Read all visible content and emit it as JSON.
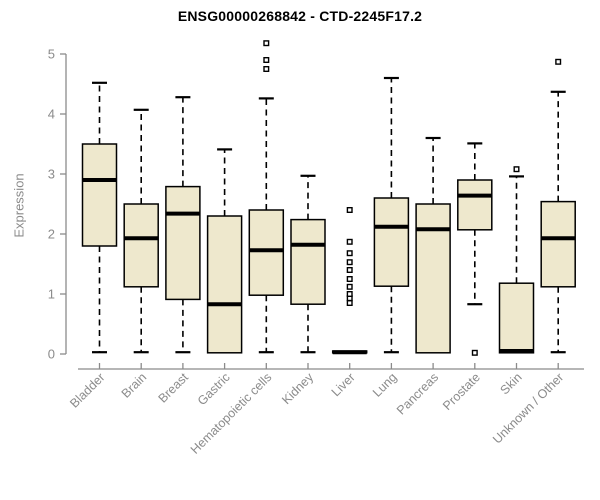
{
  "title": "ENSG00000268842 - CTD-2245F17.2",
  "colors": {
    "box_fill": "#EEE8CD",
    "box_stroke": "#000000",
    "median": "#000000",
    "whisker": "#000000",
    "outlier_fill": "#FFFFFF",
    "axis": "#8B8B8B",
    "tick_label": "#8B8B8B",
    "title": "#000000",
    "background": "#FFFFFF"
  },
  "chart_data": {
    "type": "boxplot",
    "title": "ENSG00000268842 - CTD-2245F17.2",
    "xlabel": "",
    "ylabel": "Expression",
    "ylim": [
      0,
      5
    ],
    "yticks": [
      0,
      1,
      2,
      3,
      4,
      5
    ],
    "grid": false,
    "legend": null,
    "categories": [
      "Bladder",
      "Brain",
      "Breast",
      "Gastric",
      "Hematopoietic cells",
      "Kidney",
      "Liver",
      "Lung",
      "Pancreas",
      "Prostate",
      "Skin",
      "Unknown / Other"
    ],
    "series": [
      {
        "name": "Bladder",
        "whisker_low": 0.03,
        "q1": 1.8,
        "median": 2.9,
        "q3": 3.5,
        "whisker_high": 4.52,
        "outliers": []
      },
      {
        "name": "Brain",
        "whisker_low": 0.03,
        "q1": 1.12,
        "median": 1.93,
        "q3": 2.5,
        "whisker_high": 4.07,
        "outliers": []
      },
      {
        "name": "Breast",
        "whisker_low": 0.03,
        "q1": 0.91,
        "median": 2.34,
        "q3": 2.79,
        "whisker_high": 4.28,
        "outliers": []
      },
      {
        "name": "Gastric",
        "whisker_low": 0.02,
        "q1": 0.02,
        "median": 0.83,
        "q3": 2.3,
        "whisker_high": 3.41,
        "outliers": []
      },
      {
        "name": "Hematopoietic cells",
        "whisker_low": 0.03,
        "q1": 0.98,
        "median": 1.73,
        "q3": 2.4,
        "whisker_high": 4.26,
        "outliers": [
          4.75,
          4.9,
          5.18
        ]
      },
      {
        "name": "Kidney",
        "whisker_low": 0.03,
        "q1": 0.83,
        "median": 1.82,
        "q3": 2.24,
        "whisker_high": 2.97,
        "outliers": []
      },
      {
        "name": "Liver",
        "whisker_low": 0.02,
        "q1": 0.02,
        "median": 0.03,
        "q3": 0.05,
        "whisker_high": 0.05,
        "outliers": [
          0.85,
          0.93,
          1.0,
          1.12,
          1.25,
          1.4,
          1.53,
          1.68,
          1.87,
          2.4
        ]
      },
      {
        "name": "Lung",
        "whisker_low": 0.03,
        "q1": 1.13,
        "median": 2.12,
        "q3": 2.6,
        "whisker_high": 4.6,
        "outliers": []
      },
      {
        "name": "Pancreas",
        "whisker_low": 0.02,
        "q1": 0.02,
        "median": 2.08,
        "q3": 2.5,
        "whisker_high": 3.6,
        "outliers": []
      },
      {
        "name": "Prostate",
        "whisker_low": 0.83,
        "q1": 2.07,
        "median": 2.64,
        "q3": 2.9,
        "whisker_high": 3.51,
        "outliers": [
          0.02
        ]
      },
      {
        "name": "Skin",
        "whisker_low": 0.02,
        "q1": 0.02,
        "median": 0.05,
        "q3": 1.18,
        "whisker_high": 2.96,
        "outliers": [
          3.08
        ]
      },
      {
        "name": "Unknown / Other",
        "whisker_low": 0.03,
        "q1": 1.12,
        "median": 1.93,
        "q3": 2.54,
        "whisker_high": 4.37,
        "outliers": [
          4.87
        ]
      }
    ]
  }
}
